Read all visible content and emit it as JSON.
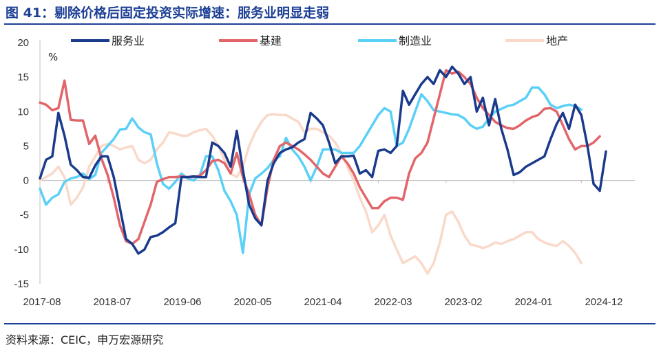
{
  "header": {
    "title": "图 41：剔除价格后固定投资实际增速：服务业明显走弱"
  },
  "footer": {
    "source": "资料来源：CEIC，申万宏源研究"
  },
  "chart_data": {
    "type": "line",
    "title": "图 41：剔除价格后固定投资实际增速：服务业明显走弱",
    "ylabel": "%",
    "xlabel": "",
    "ylim": [
      -15,
      20
    ],
    "yticks": [
      20,
      15,
      10,
      5,
      0,
      -5,
      -10,
      -15
    ],
    "xtick_labels": [
      "2017-08",
      "2018-07",
      "2019-06",
      "2020-05",
      "2021-04",
      "2022-03",
      "2023-02",
      "2024-01",
      "2024-12"
    ],
    "legend_position": "top",
    "grid": false,
    "x_start_month": "2017-08",
    "series": [
      {
        "name": "服务业",
        "color": "#1a3a8c",
        "values": [
          0.3,
          3,
          3.5,
          9.8,
          6.5,
          2.3,
          1.5,
          0.5,
          0.4,
          2.2,
          3.5,
          3.5,
          0.5,
          -4,
          -8.5,
          -9.2,
          -10.6,
          -10,
          -8.2,
          -8,
          -7.5,
          -6.8,
          -6.2,
          0.5,
          0.5,
          0.6,
          0.5,
          0.5,
          5.5,
          5,
          4,
          2,
          7.2,
          1.5,
          -3.5,
          -5.5,
          -6.5,
          0,
          2.5,
          4,
          4.5,
          4.8,
          5.5,
          6,
          9.8,
          9,
          8,
          5.5,
          2.5,
          3.5,
          3.5,
          3.6,
          1,
          1.5,
          0.5,
          4.3,
          4.5,
          4,
          5,
          13,
          11,
          12.5,
          14,
          15,
          14,
          16,
          15,
          16.5,
          15.5,
          14,
          15,
          10,
          12,
          8,
          11.8,
          7.5,
          4.5,
          0.8,
          1.2,
          2,
          2.5,
          3,
          3.5,
          6,
          8.2,
          9.8,
          7.5,
          11,
          9.5,
          5,
          -0.5,
          -1.5,
          4.2
        ]
      },
      {
        "name": "基建",
        "color": "#e2656a",
        "values": [
          11.3,
          11,
          10.2,
          10.5,
          14.5,
          8.8,
          8.7,
          8.7,
          5.3,
          6.5,
          3.2,
          0.8,
          -2.5,
          -6.5,
          -8.8,
          -9.2,
          -8.5,
          -6,
          -3.5,
          -0.2,
          0.2,
          0.5,
          0.5,
          0.6,
          0.5,
          0.5,
          0.7,
          1.5,
          2.8,
          3,
          2.5,
          1,
          4,
          0.5,
          -2,
          -5,
          -6.5,
          -1,
          3,
          5,
          5.5,
          5,
          4.5,
          3.8,
          3,
          2,
          1,
          0.5,
          2,
          3.5,
          2.5,
          1,
          -1,
          -2.5,
          -4,
          -4,
          -3,
          -2.5,
          -2.5,
          -2.8,
          1,
          3.2,
          4,
          5.5,
          9,
          12.5,
          16,
          15.5,
          15.8,
          15,
          14,
          12,
          10.5,
          9.5,
          8.5,
          8,
          7.6,
          7.5,
          8,
          8.7,
          9.2,
          9.5,
          10.4,
          10.5,
          10,
          8,
          6,
          4.5,
          5,
          5,
          5.5,
          6.4
        ]
      },
      {
        "name": "制造业",
        "color": "#5bd0f7",
        "values": [
          -1.2,
          -3.5,
          -2.5,
          -2,
          -0.2,
          0.3,
          0.5,
          1,
          0.2,
          0.8,
          4,
          5,
          6,
          7.4,
          7.5,
          9,
          7.7,
          7,
          6.7,
          2.5,
          -0.5,
          -1.2,
          -0.2,
          1,
          0.3,
          0,
          0.8,
          3.5,
          3.5,
          1.5,
          -1.5,
          -3,
          -5,
          -10.5,
          -2,
          0.3,
          1,
          1.8,
          3,
          3.5,
          6.2,
          4.5,
          3.5,
          2,
          0,
          2,
          4.5,
          4.5,
          4.5,
          4,
          4,
          4,
          5,
          6.5,
          8,
          9.5,
          10.5,
          10,
          5,
          5.5,
          7.5,
          10,
          12.5,
          11.5,
          10.2,
          10,
          9.8,
          9.6,
          9.5,
          9,
          8,
          7.5,
          7.8,
          9,
          10,
          10.4,
          10.8,
          11,
          11.5,
          12,
          13.5,
          13.5,
          12.5,
          11,
          10.5,
          10.8,
          11,
          10.8,
          10.3
        ]
      },
      {
        "name": "地产",
        "color": "#f9d9c9",
        "values": [
          0,
          0.5,
          1,
          2,
          0.5,
          -3.5,
          -2.5,
          -1,
          2,
          3.5,
          5,
          5.3,
          5,
          4.5,
          4.8,
          5,
          3,
          2.5,
          3,
          4.5,
          5.5,
          7,
          6.8,
          6.5,
          6.5,
          7,
          7.3,
          7.5,
          6.5,
          5,
          3,
          1,
          0.5,
          2,
          5,
          7,
          8.5,
          9.5,
          9.6,
          9.5,
          9.5,
          9,
          8.5,
          7,
          7.5,
          7.5,
          7,
          6.5,
          5.5,
          4,
          2,
          0,
          -2.5,
          -4.5,
          -7.5,
          -6.5,
          -5,
          -8,
          -10,
          -12,
          -11.5,
          -11,
          -12,
          -13.5,
          -12,
          -9,
          -5,
          -4.5,
          -6,
          -8,
          -9.3,
          -9.5,
          -9.8,
          -9.5,
          -9,
          -9.2,
          -8.8,
          -8.5,
          -8,
          -7.5,
          -7.5,
          -8.5,
          -9,
          -9.3,
          -9.5,
          -8.8,
          -9.5,
          -10.5,
          -12
        ]
      }
    ]
  }
}
